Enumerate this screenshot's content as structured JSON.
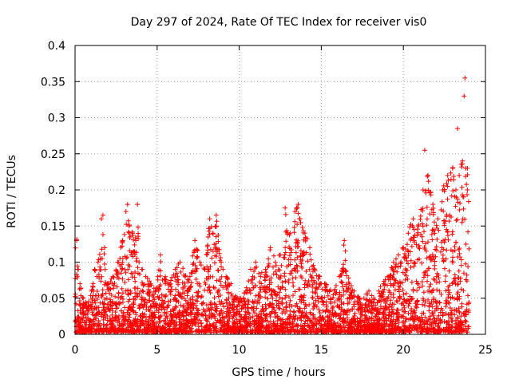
{
  "chart_data": {
    "type": "scatter",
    "title": "Day 297 of 2024, Rate Of TEC Index for receiver vis0",
    "xlabel": "GPS time / hours",
    "ylabel": "ROTI / TECUs",
    "xlim": [
      0,
      25
    ],
    "ylim": [
      0,
      0.4
    ],
    "xticks": [
      0,
      5,
      10,
      15,
      20,
      25
    ],
    "xtick_labels": [
      "0",
      "5",
      "10",
      "15",
      "20",
      "25"
    ],
    "yticks": [
      0,
      0.05,
      0.1,
      0.15,
      0.2,
      0.25,
      0.3,
      0.35,
      0.4
    ],
    "ytick_labels": [
      "0",
      "0.05",
      "0.1",
      "0.15",
      "0.2",
      "0.25",
      "0.3",
      "0.35",
      "0.4"
    ],
    "grid": true,
    "marker": "plus",
    "color": "#ff0000",
    "series": [
      {
        "values_x": [
          0.1,
          0.2,
          0.3,
          0.5,
          0.8,
          1.0,
          1.2,
          1.4,
          1.6,
          1.8,
          2.0,
          2.3,
          2.6,
          2.9,
          3.1,
          3.3,
          3.5,
          3.7,
          3.9,
          4.1,
          4.3,
          4.6,
          4.9,
          5.2,
          5.5,
          5.8,
          6.1,
          6.4,
          6.7,
          7.0,
          7.3,
          7.6,
          7.9,
          8.2,
          8.4,
          8.6,
          8.9,
          9.2,
          9.5,
          9.8,
          10.1,
          10.4,
          10.7,
          11.0,
          11.3,
          11.6,
          11.9,
          12.2,
          12.5,
          12.8,
          13.1,
          13.4,
          13.7,
          14.0,
          14.3,
          14.6,
          14.9,
          15.2,
          15.5,
          15.8,
          16.1,
          16.4,
          16.7,
          17.0,
          17.3,
          17.6,
          17.9,
          18.2,
          18.5,
          18.8,
          19.1,
          19.4,
          19.7,
          20.0,
          20.3,
          20.6,
          20.9,
          21.2,
          21.5,
          21.8,
          22.1,
          22.4,
          22.7,
          23.0,
          23.2,
          23.4,
          23.6,
          23.8,
          23.9,
          3.2,
          3.8,
          1.7,
          8.6,
          13.6,
          12.8,
          21.3,
          23.3,
          23.7,
          23.75,
          23.9
        ],
        "values_y": [
          0.13,
          0.09,
          0.07,
          0.05,
          0.04,
          0.06,
          0.09,
          0.1,
          0.16,
          0.12,
          0.07,
          0.08,
          0.1,
          0.13,
          0.17,
          0.15,
          0.14,
          0.13,
          0.1,
          0.09,
          0.08,
          0.07,
          0.06,
          0.11,
          0.08,
          0.07,
          0.09,
          0.1,
          0.08,
          0.08,
          0.13,
          0.1,
          0.09,
          0.16,
          0.14,
          0.15,
          0.1,
          0.08,
          0.07,
          0.05,
          0.05,
          0.06,
          0.09,
          0.1,
          0.08,
          0.09,
          0.12,
          0.1,
          0.11,
          0.12,
          0.14,
          0.17,
          0.16,
          0.14,
          0.12,
          0.09,
          0.08,
          0.07,
          0.06,
          0.06,
          0.08,
          0.13,
          0.07,
          0.06,
          0.05,
          0.05,
          0.06,
          0.05,
          0.06,
          0.07,
          0.08,
          0.1,
          0.11,
          0.12,
          0.14,
          0.16,
          0.15,
          0.2,
          0.22,
          0.18,
          0.16,
          0.2,
          0.22,
          0.23,
          0.2,
          0.22,
          0.24,
          0.23,
          0.2,
          0.18,
          0.18,
          0.165,
          0.165,
          0.18,
          0.175,
          0.255,
          0.285,
          0.33,
          0.355,
          0.23
        ]
      }
    ]
  }
}
